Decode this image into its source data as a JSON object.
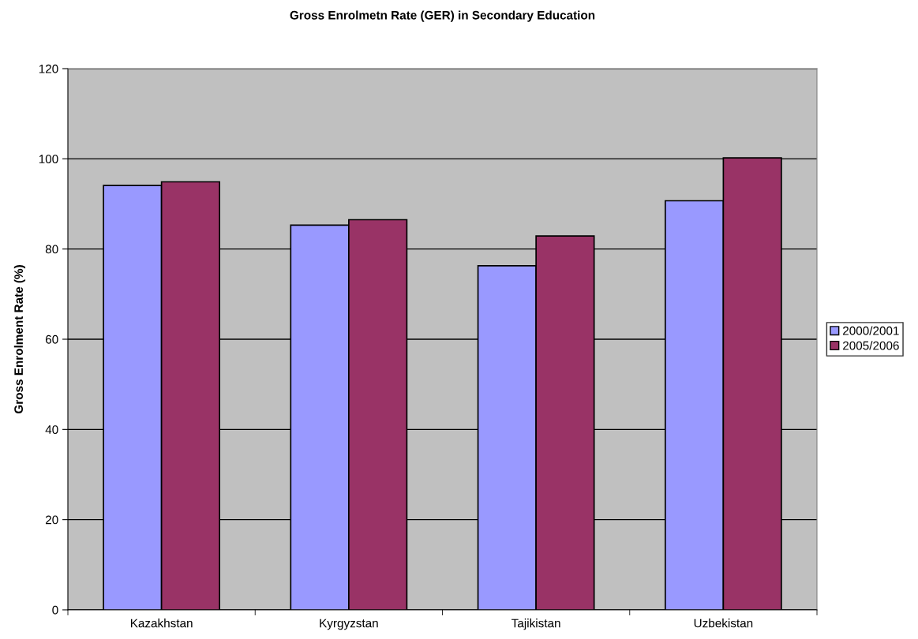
{
  "chart_data": {
    "type": "bar",
    "title": "Gross Enrolmetn Rate (GER) in Secondary Education",
    "ylabel": "Gross Enrolment Rate (%)",
    "categories": [
      "Kazakhstan",
      "Kyrgyzstan",
      "Tajikistan",
      "Uzbekistan"
    ],
    "series": [
      {
        "name": "2000/2001",
        "color": "#9999ff",
        "values": [
          94.1,
          85.3,
          76.3,
          90.7
        ]
      },
      {
        "name": "2005/2006",
        "color": "#993366",
        "values": [
          94.9,
          86.5,
          82.9,
          100.2
        ]
      }
    ],
    "ylim": [
      0,
      120
    ],
    "yticks": [
      0,
      20,
      40,
      60,
      80,
      100,
      120
    ],
    "grid": "y",
    "legend": "right"
  }
}
